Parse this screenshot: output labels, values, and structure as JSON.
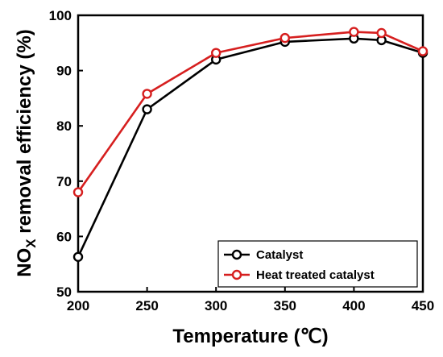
{
  "chart_data": {
    "type": "line",
    "x": [
      200,
      250,
      300,
      350,
      400,
      420,
      450
    ],
    "series": [
      {
        "name": "Catalyst",
        "values": [
          56.3,
          83.0,
          92.0,
          95.2,
          95.8,
          95.5,
          93.2
        ],
        "color": "#000000"
      },
      {
        "name": "Heat treated catalyst",
        "values": [
          68.0,
          85.8,
          93.2,
          95.9,
          97.0,
          96.8,
          93.5
        ],
        "color": "#d61f1f"
      }
    ],
    "xlabel": "Temperature (℃)",
    "ylabel_main": "NO",
    "ylabel_sub": "X",
    "ylabel_rest": " removal efficiency (%)",
    "xlim": [
      200,
      450
    ],
    "ylim": [
      50,
      100
    ],
    "xticks": [
      200,
      250,
      300,
      350,
      400,
      450
    ],
    "yticks": [
      50,
      60,
      70,
      80,
      90,
      100
    ],
    "grid": false,
    "legend_position": "bottom-right"
  }
}
